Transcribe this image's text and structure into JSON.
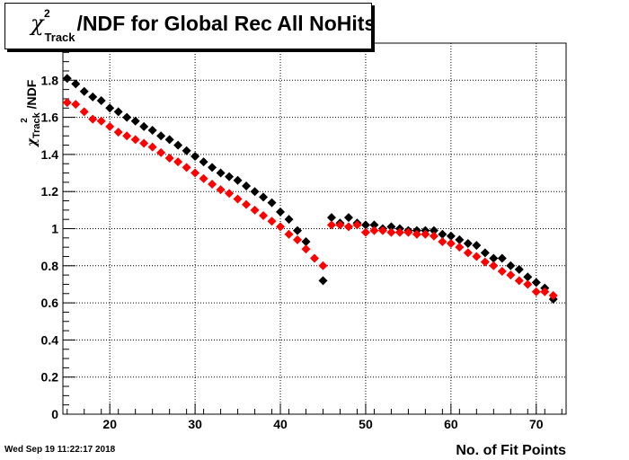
{
  "title": {
    "symbol": "χ",
    "superscript": "2",
    "subscript": "Track",
    "text": "/NDF for Global Rec All NoHits"
  },
  "footer": {
    "timestamp": "Wed Sep 19 11:22:17 2018"
  },
  "colors": {
    "series_black": "#000000",
    "series_red": "#ff0000",
    "grid": "#000000"
  },
  "chart_data": {
    "type": "scatter",
    "title": "χ2Track/NDF for Global Rec All NoHits",
    "xlabel": "No. of Fit Points",
    "ylabel": "χ2Track/NDF",
    "xlim": [
      14.5,
      73.5
    ],
    "ylim": [
      0,
      2.0
    ],
    "x_ticks": [
      "20",
      "30",
      "40",
      "50",
      "60",
      "70"
    ],
    "y_ticks": [
      "0",
      "0.2",
      "0.4",
      "0.6",
      "0.8",
      "1",
      "1.2",
      "1.4",
      "1.6",
      "1.8"
    ],
    "grid": true,
    "marker": "diamond",
    "series": [
      {
        "color": "#000000",
        "x": [
          15,
          16,
          17,
          18,
          19,
          20,
          21,
          22,
          23,
          24,
          25,
          26,
          27,
          28,
          29,
          30,
          31,
          32,
          33,
          34,
          35,
          36,
          37,
          38,
          39,
          40,
          41,
          42,
          43,
          45,
          46,
          47,
          48,
          49,
          50,
          51,
          52,
          53,
          54,
          55,
          56,
          57,
          58,
          59,
          60,
          61,
          62,
          63,
          64,
          65,
          66,
          67,
          68,
          69,
          70,
          71,
          72
        ],
        "y": [
          1.81,
          1.78,
          1.74,
          1.71,
          1.69,
          1.65,
          1.63,
          1.6,
          1.58,
          1.55,
          1.53,
          1.5,
          1.48,
          1.45,
          1.42,
          1.39,
          1.36,
          1.33,
          1.3,
          1.28,
          1.26,
          1.23,
          1.2,
          1.17,
          1.14,
          1.09,
          1.05,
          0.99,
          0.93,
          0.72,
          1.06,
          1.03,
          1.06,
          1.03,
          1.02,
          1.02,
          1.0,
          1.01,
          1.0,
          0.99,
          0.99,
          0.99,
          0.99,
          0.97,
          0.96,
          0.94,
          0.92,
          0.91,
          0.87,
          0.84,
          0.84,
          0.8,
          0.78,
          0.74,
          0.71,
          0.68,
          0.62
        ]
      },
      {
        "color": "#ff0000",
        "x": [
          15,
          16,
          17,
          18,
          19,
          20,
          21,
          22,
          23,
          24,
          25,
          26,
          27,
          28,
          29,
          30,
          31,
          32,
          33,
          34,
          35,
          36,
          37,
          38,
          39,
          40,
          41,
          42,
          43,
          44,
          45,
          46,
          47,
          48,
          49,
          50,
          51,
          52,
          53,
          54,
          55,
          56,
          57,
          58,
          59,
          60,
          61,
          62,
          63,
          64,
          65,
          66,
          67,
          68,
          69,
          70,
          71,
          72
        ],
        "y": [
          1.68,
          1.67,
          1.63,
          1.59,
          1.58,
          1.55,
          1.52,
          1.5,
          1.48,
          1.46,
          1.44,
          1.41,
          1.38,
          1.36,
          1.33,
          1.3,
          1.27,
          1.24,
          1.21,
          1.19,
          1.16,
          1.13,
          1.1,
          1.07,
          1.04,
          1.01,
          0.97,
          0.94,
          0.89,
          0.84,
          0.8,
          1.02,
          1.02,
          1.01,
          1.02,
          0.98,
          0.99,
          0.99,
          0.98,
          0.98,
          0.98,
          0.97,
          0.97,
          0.96,
          0.93,
          0.92,
          0.9,
          0.87,
          0.85,
          0.82,
          0.8,
          0.77,
          0.75,
          0.72,
          0.7,
          0.66,
          0.66,
          0.64
        ]
      }
    ]
  }
}
